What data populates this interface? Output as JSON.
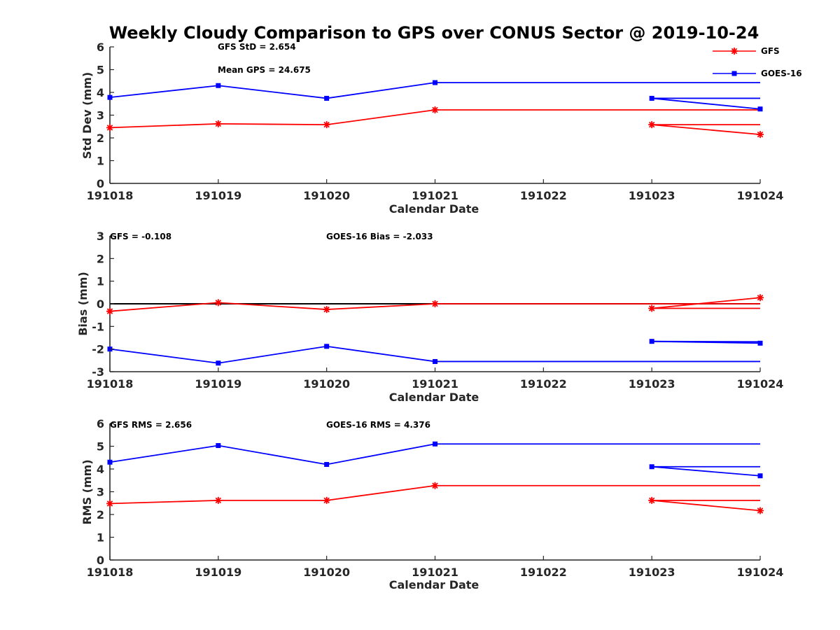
{
  "figure": {
    "title": "Weekly Cloudy Comparison to GPS over CONUS Sector @ 2019-10-24"
  },
  "legend": {
    "placement": "top-right",
    "entries": [
      {
        "label": "GFS",
        "color": "#ff0000",
        "marker": "asterisk"
      },
      {
        "label": "GOES-16",
        "color": "#0000ff",
        "marker": "square"
      }
    ]
  },
  "chart_data": [
    {
      "type": "line",
      "xlabel": "Calendar Date",
      "ylabel": "Std Dev (mm)",
      "ylim": [
        0,
        6
      ],
      "yticks": [
        0,
        1,
        2,
        3,
        4,
        5,
        6
      ],
      "categories": [
        "191018",
        "191019",
        "191020",
        "191021",
        "191022",
        "191023",
        "191024"
      ],
      "zero_line": false,
      "annotations": [
        {
          "text": "GFS StD = 2.654"
        },
        {
          "text": "Mean GPS = 24.675"
        }
      ],
      "series": [
        {
          "name": "GFS",
          "color": "#ff0000",
          "marker": "asterisk",
          "points": [
            [
              0,
              2.45
            ],
            [
              1,
              2.62
            ],
            [
              2,
              2.58
            ],
            [
              3,
              3.23
            ],
            [
              5,
              2.58
            ],
            [
              6,
              2.15
            ]
          ],
          "path": [
            [
              0,
              2.45
            ],
            [
              1,
              2.62
            ],
            [
              2,
              2.58
            ],
            [
              3,
              3.23
            ],
            [
              6,
              3.23
            ]
          ],
          "extra_paths": [
            [
              [
                5,
                2.58
              ],
              [
                6,
                2.58
              ]
            ],
            [
              [
                5,
                2.58
              ],
              [
                6,
                2.15
              ]
            ]
          ]
        },
        {
          "name": "GOES-16",
          "color": "#0000ff",
          "marker": "square",
          "points": [
            [
              0,
              3.78
            ],
            [
              1,
              4.3
            ],
            [
              2,
              3.74
            ],
            [
              3,
              4.43
            ],
            [
              5,
              3.74
            ],
            [
              6,
              3.27
            ]
          ],
          "path": [
            [
              0,
              3.78
            ],
            [
              1,
              4.3
            ],
            [
              2,
              3.74
            ],
            [
              3,
              4.43
            ],
            [
              6,
              4.43
            ]
          ],
          "extra_paths": [
            [
              [
                5,
                3.74
              ],
              [
                6,
                3.74
              ]
            ],
            [
              [
                5,
                3.74
              ],
              [
                6,
                3.27
              ]
            ]
          ]
        }
      ]
    },
    {
      "type": "line",
      "xlabel": "Calendar Date",
      "ylabel": "Bias (mm)",
      "ylim": [
        -3,
        3
      ],
      "yticks": [
        -3,
        -2,
        -1,
        0,
        1,
        2,
        3
      ],
      "categories": [
        "191018",
        "191019",
        "191020",
        "191021",
        "191022",
        "191023",
        "191024"
      ],
      "zero_line": true,
      "annotations": [
        {
          "text": "GFS = -0.108"
        },
        {
          "text": "GOES-16 Bias  = -2.033"
        }
      ],
      "series": [
        {
          "name": "GFS",
          "color": "#ff0000",
          "marker": "asterisk",
          "points": [
            [
              0,
              -0.33
            ],
            [
              1,
              0.05
            ],
            [
              2,
              -0.25
            ],
            [
              3,
              0.0
            ],
            [
              5,
              -0.2
            ],
            [
              6,
              0.27
            ]
          ],
          "path": [
            [
              0,
              -0.33
            ],
            [
              1,
              0.05
            ],
            [
              2,
              -0.25
            ],
            [
              3,
              0.0
            ],
            [
              6,
              0.0
            ]
          ],
          "extra_paths": [
            [
              [
                5,
                -0.2
              ],
              [
                6,
                -0.2
              ]
            ],
            [
              [
                5,
                -0.2
              ],
              [
                6,
                0.27
              ]
            ]
          ]
        },
        {
          "name": "GOES-16",
          "color": "#0000ff",
          "marker": "square",
          "points": [
            [
              0,
              -2.0
            ],
            [
              1,
              -2.62
            ],
            [
              2,
              -1.88
            ],
            [
              3,
              -2.55
            ],
            [
              5,
              -1.66
            ],
            [
              6,
              -1.74
            ]
          ],
          "path": [
            [
              0,
              -2.0
            ],
            [
              1,
              -2.62
            ],
            [
              2,
              -1.88
            ],
            [
              3,
              -2.55
            ],
            [
              6,
              -2.55
            ]
          ],
          "extra_paths": [
            [
              [
                5,
                -1.66
              ],
              [
                6,
                -1.68
              ]
            ],
            [
              [
                5,
                -1.66
              ],
              [
                6,
                -1.74
              ]
            ]
          ]
        }
      ]
    },
    {
      "type": "line",
      "xlabel": "Calendar Date",
      "ylabel": "RMS (mm)",
      "ylim": [
        0,
        6
      ],
      "yticks": [
        0,
        1,
        2,
        3,
        4,
        5,
        6
      ],
      "categories": [
        "191018",
        "191019",
        "191020",
        "191021",
        "191022",
        "191023",
        "191024"
      ],
      "zero_line": false,
      "annotations": [
        {
          "text": "GFS RMS = 2.656"
        },
        {
          "text": "GOES-16 RMS = 4.376"
        }
      ],
      "series": [
        {
          "name": "GFS",
          "color": "#ff0000",
          "marker": "asterisk",
          "points": [
            [
              0,
              2.48
            ],
            [
              1,
              2.62
            ],
            [
              2,
              2.62
            ],
            [
              3,
              3.27
            ],
            [
              5,
              2.62
            ],
            [
              6,
              2.17
            ]
          ],
          "path": [
            [
              0,
              2.48
            ],
            [
              1,
              2.62
            ],
            [
              2,
              2.62
            ],
            [
              3,
              3.27
            ],
            [
              6,
              3.27
            ]
          ],
          "extra_paths": [
            [
              [
                5,
                2.62
              ],
              [
                6,
                2.62
              ]
            ],
            [
              [
                5,
                2.62
              ],
              [
                6,
                2.17
              ]
            ]
          ]
        },
        {
          "name": "GOES-16",
          "color": "#0000ff",
          "marker": "square",
          "points": [
            [
              0,
              4.3
            ],
            [
              1,
              5.03
            ],
            [
              2,
              4.2
            ],
            [
              3,
              5.1
            ],
            [
              5,
              4.1
            ],
            [
              6,
              3.7
            ]
          ],
          "path": [
            [
              0,
              4.3
            ],
            [
              1,
              5.03
            ],
            [
              2,
              4.2
            ],
            [
              3,
              5.1
            ],
            [
              6,
              5.1
            ]
          ],
          "extra_paths": [
            [
              [
                5,
                4.1
              ],
              [
                6,
                4.1
              ]
            ],
            [
              [
                5,
                4.1
              ],
              [
                6,
                3.7
              ]
            ]
          ]
        }
      ]
    }
  ]
}
